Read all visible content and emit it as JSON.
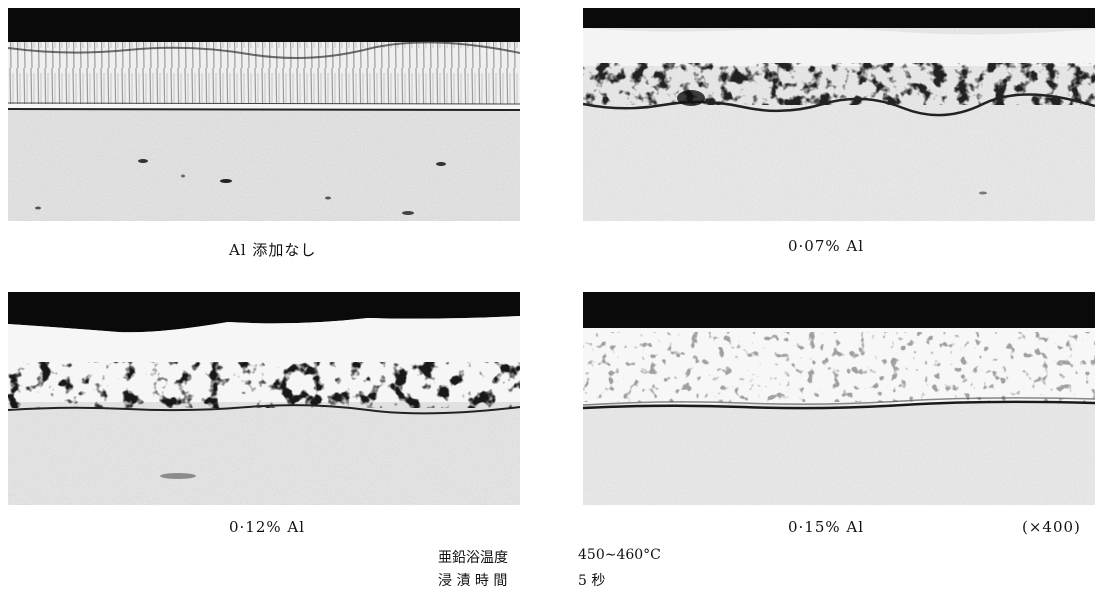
{
  "panels": [
    {
      "caption": "Al 添加なし"
    },
    {
      "caption": "0·07% Al"
    },
    {
      "caption": "0·12% Al"
    },
    {
      "caption": "0·15% Al"
    }
  ],
  "magnification": "(×400)",
  "conditions": [
    {
      "label": "亜鉛浴温度",
      "value": "450∼460°C"
    },
    {
      "label": "浸 漬 時 間",
      "value": "5 秒"
    }
  ]
}
